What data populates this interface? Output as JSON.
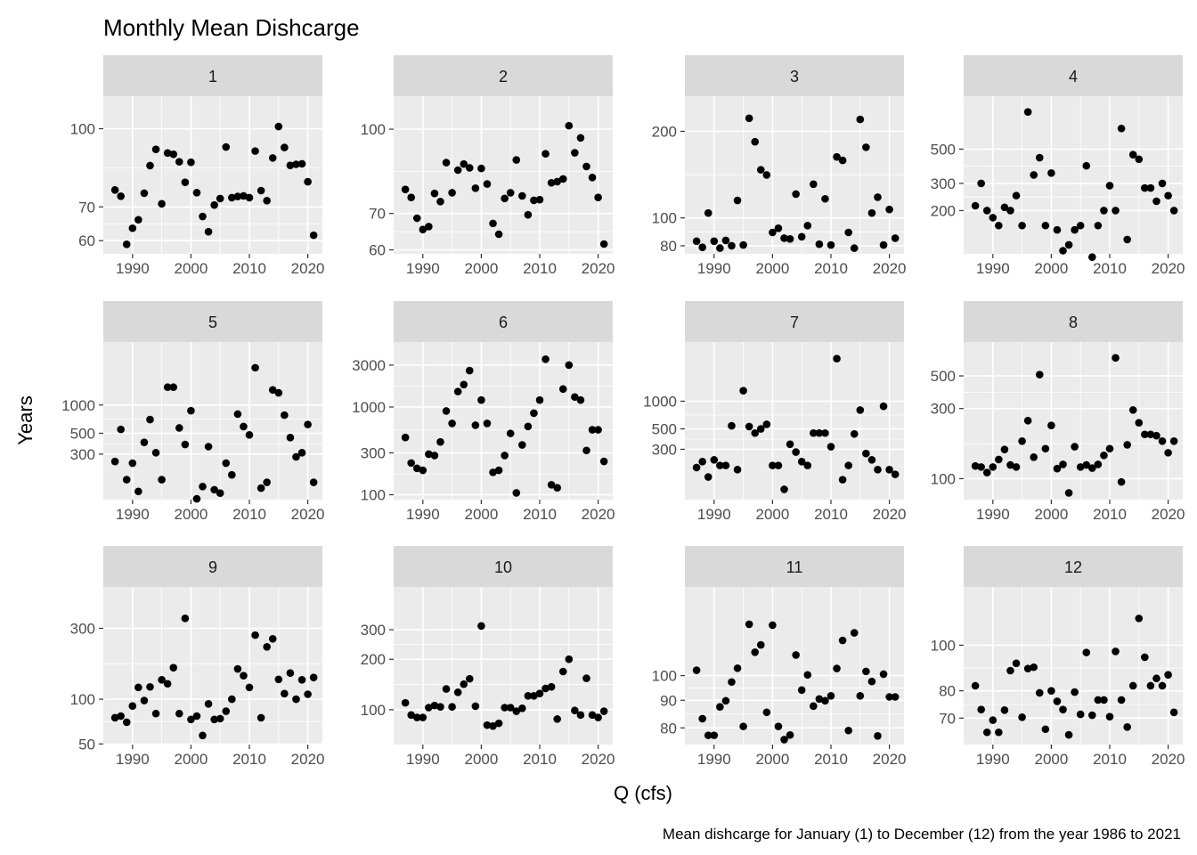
{
  "chart_data": {
    "type": "scatter",
    "title": "Monthly Mean Dishcarge",
    "xlabel": "Q (cfs)",
    "ylabel": "Years",
    "caption": "Mean dishcarge for January (1) to December (12) from the year 1986 to 2021",
    "facet_by": "month",
    "x_range": [
      1985,
      2022.5
    ],
    "x_ticks": [
      1990,
      2000,
      2010,
      2020
    ],
    "y_scale": "log",
    "grid": true,
    "point_color": "#000000",
    "panel_background": "#ebebeb",
    "strip_background": "#d9d9d9",
    "x": [
      1987,
      1988,
      1989,
      1990,
      1991,
      1992,
      1993,
      1994,
      1995,
      1996,
      1997,
      1998,
      1999,
      2000,
      2001,
      2002,
      2003,
      2004,
      2005,
      2006,
      2007,
      2008,
      2009,
      2010,
      2011,
      2012,
      2013,
      2014,
      2015,
      2016,
      2017,
      2018,
      2019,
      2020,
      2021
    ],
    "panels": [
      {
        "label": "1",
        "ylim": [
          56.5,
          116
        ],
        "y_ticks": [
          60,
          70,
          100
        ],
        "values": [
          75.6,
          73.5,
          59,
          63.5,
          66,
          74.5,
          84.5,
          91,
          71,
          89.5,
          89,
          86,
          78.3,
          85.8,
          74.7,
          67,
          62.5,
          70.6,
          72.7,
          92,
          73,
          73.4,
          73.6,
          73,
          90.3,
          75.4,
          72,
          87.5,
          101,
          91.8,
          84.6,
          85,
          85.2,
          78.5,
          61.5
        ]
      },
      {
        "label": "2",
        "ylim": [
          59,
          115
        ],
        "y_ticks": [
          60,
          70,
          100
        ],
        "values": [
          77.5,
          74.9,
          68.6,
          65.4,
          66.2,
          76.2,
          73.6,
          86.8,
          76.4,
          84.1,
          86.3,
          84.9,
          77.9,
          84.7,
          79.3,
          67.1,
          64.1,
          74.6,
          76.4,
          87.8,
          75.4,
          69.6,
          74,
          74.2,
          90.1,
          79.7,
          80.1,
          81,
          101.5,
          90.5,
          96.4,
          85.4,
          81.5,
          74.9,
          61.5
        ]
      },
      {
        "label": "3",
        "ylim": [
          75,
          265
        ],
        "y_ticks": [
          80,
          100,
          200
        ],
        "values": [
          83,
          79,
          104,
          83,
          78.5,
          83.5,
          80,
          115,
          80.5,
          222,
          184,
          147,
          141,
          89,
          92,
          85,
          84.5,
          121,
          86,
          94,
          131,
          81,
          116.5,
          80.5,
          163,
          158.5,
          89,
          78.5,
          220,
          176,
          104,
          118,
          80.5,
          107,
          85
        ]
      },
      {
        "label": "4",
        "ylim": [
          105,
          1100
        ],
        "y_ticks": [
          200,
          300,
          500
        ],
        "values": [
          215,
          300,
          200,
          180,
          160,
          210,
          200,
          250,
          160,
          870,
          340,
          440,
          160,
          350,
          150,
          110,
          120,
          150,
          160,
          390,
          100,
          160,
          200,
          290,
          200,
          680,
          130,
          460,
          430,
          280,
          280,
          230,
          300,
          250,
          200
        ]
      },
      {
        "label": "5",
        "ylim": [
          98,
          4700
        ],
        "y_ticks": [
          300,
          500,
          1000
        ],
        "values": [
          250,
          550,
          160,
          240,
          120,
          400,
          700,
          310,
          160,
          1550,
          1550,
          570,
          380,
          870,
          100,
          135,
          360,
          125,
          115,
          240,
          180,
          800,
          590,
          480,
          2500,
          130,
          150,
          1450,
          1350,
          780,
          450,
          280,
          310,
          620,
          150
        ]
      },
      {
        "label": "6",
        "ylim": [
          88,
          5500
        ],
        "y_ticks": [
          100,
          300,
          1000,
          3000
        ],
        "values": [
          450,
          230,
          200,
          190,
          290,
          280,
          400,
          900,
          650,
          1500,
          1800,
          2600,
          620,
          1200,
          650,
          180,
          190,
          280,
          500,
          105,
          370,
          600,
          850,
          1200,
          3500,
          130,
          120,
          1600,
          3000,
          1300,
          1200,
          320,
          550,
          550,
          240
        ]
      },
      {
        "label": "7",
        "ylim": [
          85,
          4400
        ],
        "y_ticks": [
          300,
          500,
          1000
        ],
        "values": [
          190,
          220,
          150,
          230,
          200,
          200,
          540,
          180,
          1300,
          530,
          450,
          500,
          560,
          200,
          200,
          110,
          340,
          280,
          220,
          200,
          450,
          450,
          450,
          320,
          2900,
          140,
          200,
          440,
          800,
          270,
          230,
          180,
          880,
          180,
          160
        ]
      },
      {
        "label": "8",
        "ylim": [
          72,
          850
        ],
        "y_ticks": [
          100,
          300,
          500
        ],
        "values": [
          122,
          120,
          110,
          120,
          135,
          158,
          124,
          120,
          180,
          248,
          140,
          510,
          160,
          230,
          117,
          125,
          80,
          165,
          120,
          124,
          118,
          125,
          144,
          160,
          663,
          95,
          170,
          293,
          240,
          200,
          200,
          196,
          180,
          150,
          180
        ]
      },
      {
        "label": "9",
        "ylim": [
          49.5,
          570
        ],
        "y_ticks": [
          50,
          100,
          300
        ],
        "values": [
          75,
          77,
          70,
          90,
          120,
          98,
          121,
          80,
          135,
          127,
          163,
          80,
          350,
          73,
          77,
          57,
          93,
          73,
          74,
          83,
          100,
          160,
          144,
          120,
          270,
          75,
          225,
          255,
          136,
          109,
          150,
          100,
          135,
          108,
          140
        ]
      },
      {
        "label": "10",
        "ylim": [
          62,
          540
        ],
        "y_ticks": [
          100,
          200,
          300
        ],
        "values": [
          110,
          93,
          90,
          90,
          103,
          106,
          104,
          133,
          104,
          127,
          142,
          153,
          105,
          316,
          81,
          80,
          83,
          103,
          103,
          98,
          102,
          121,
          121,
          125,
          134,
          137,
          88,
          169,
          200,
          99,
          93,
          154,
          93,
          90,
          98
        ]
      },
      {
        "label": "11",
        "ylim": [
          74.5,
          146
        ],
        "y_ticks": [
          80,
          90,
          100
        ],
        "values": [
          102.3,
          83.2,
          77.5,
          77.5,
          87.5,
          89.8,
          97.3,
          103.2,
          80.5,
          124.5,
          110.5,
          114,
          85.5,
          124,
          80.5,
          76.1,
          77.6,
          109.2,
          94,
          100.3,
          87.8,
          90.5,
          89.8,
          91.7,
          103.1,
          116.2,
          79.1,
          120,
          91.7,
          101.8,
          97.5,
          77.3,
          100.6,
          91.3,
          91.3
        ]
      },
      {
        "label": "12",
        "ylim": [
          61.5,
          133
        ],
        "y_ticks": [
          70,
          80,
          100
        ],
        "values": [
          82,
          73,
          65.3,
          69.3,
          65.3,
          72.8,
          88.3,
          91.5,
          70.3,
          89.2,
          89.8,
          79.2,
          66.3,
          80,
          76,
          73,
          64.5,
          79.5,
          71.3,
          96.5,
          71,
          76.5,
          76.5,
          70.5,
          97,
          76.5,
          67,
          82,
          114,
          94.3,
          82,
          85,
          82,
          86.5,
          72
        ]
      }
    ]
  }
}
